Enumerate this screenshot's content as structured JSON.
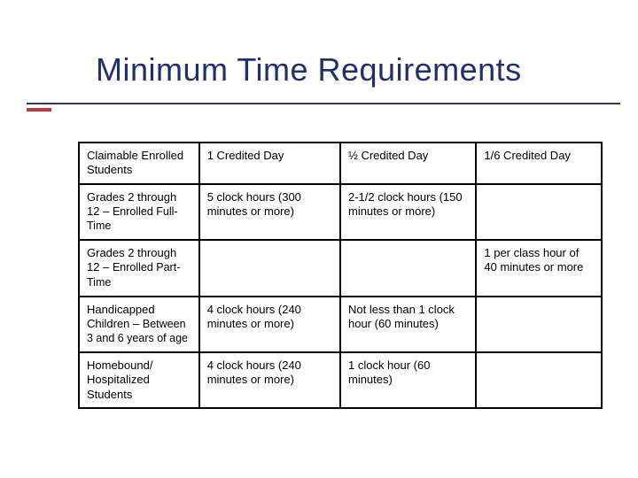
{
  "title": "Minimum Time Requirements",
  "colors": {
    "title": "#1f2f6f",
    "underline": "#333366",
    "accent": "#b04040",
    "border": "#000000",
    "background": "#ffffff"
  },
  "table": {
    "columns": [
      "Claimable Enrolled Students",
      "1 Credited Day",
      "½ Credited Day",
      "1/6 Credited Day"
    ],
    "rows": [
      {
        "label_main": "Grades 2 through 12 –",
        "label_sub": "Enrolled Full-Time",
        "c2": "5 clock hours (300 minutes or more)",
        "c3": "2-1/2 clock hours (150 minutes or more)",
        "c4": ""
      },
      {
        "label_main": "Grades 2 through 12 –",
        "label_sub": "Enrolled Part-Time",
        "c2": "",
        "c3": "",
        "c4": "1 per class hour of 40 minutes or more"
      },
      {
        "label_main": "Handicapped Children –",
        "label_sub": "Between 3 and 6 years of age",
        "c2": "4 clock hours (240 minutes or more)",
        "c3": "Not less than 1 clock hour (60 minutes)",
        "c4": ""
      },
      {
        "label_main": "Homebound/ Hospitalized Students",
        "label_sub": "",
        "c2": "4 clock hours (240 minutes or more)",
        "c3": "1 clock hour (60 minutes)",
        "c4": ""
      }
    ]
  }
}
